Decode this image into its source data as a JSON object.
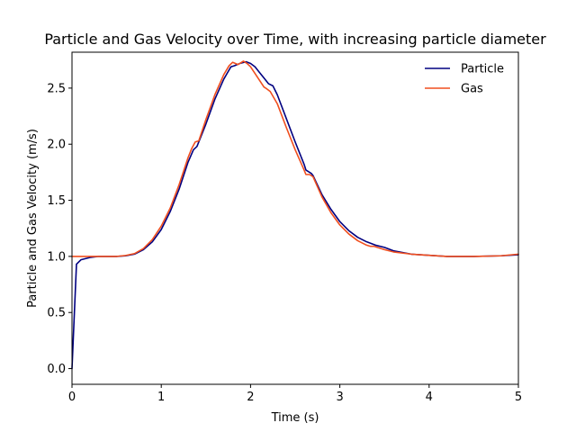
{
  "chart_data": {
    "type": "line",
    "title": "Particle and Gas Velocity over Time, with increasing particle diameter",
    "xlabel": "Time (s)",
    "ylabel": "Particle and Gas Velocity (m/s)",
    "xlim": [
      0,
      5
    ],
    "ylim": [
      -0.14,
      2.82
    ],
    "xticks": [
      0,
      1,
      2,
      3,
      4,
      5
    ],
    "xtick_labels": [
      "0",
      "1",
      "2",
      "3",
      "4",
      "5"
    ],
    "yticks": [
      0.0,
      0.5,
      1.0,
      1.5,
      2.0,
      2.5
    ],
    "ytick_labels": [
      "0.0",
      "0.5",
      "1.0",
      "1.5",
      "2.0",
      "2.5"
    ],
    "grid": false,
    "legend": "top-right",
    "series": [
      {
        "name": "Particle",
        "color": "#000080",
        "x": [
          0,
          0.05,
          0.1,
          0.2,
          0.3,
          0.4,
          0.5,
          0.6,
          0.7,
          0.8,
          0.9,
          1.0,
          1.1,
          1.2,
          1.3,
          1.36,
          1.4,
          1.5,
          1.6,
          1.7,
          1.78,
          1.82,
          1.88,
          1.95,
          2.0,
          2.05,
          2.1,
          2.15,
          2.2,
          2.25,
          2.3,
          2.4,
          2.5,
          2.6,
          2.62,
          2.68,
          2.7,
          2.8,
          2.9,
          3.0,
          3.1,
          3.2,
          3.3,
          3.4,
          3.5,
          3.6,
          3.8,
          4.0,
          4.2,
          4.5,
          4.8,
          5.0
        ],
        "y": [
          0.0,
          0.93,
          0.97,
          0.99,
          1.0,
          1.0,
          1.0,
          1.005,
          1.02,
          1.06,
          1.13,
          1.24,
          1.4,
          1.6,
          1.84,
          1.95,
          1.98,
          2.18,
          2.4,
          2.58,
          2.69,
          2.7,
          2.72,
          2.735,
          2.72,
          2.69,
          2.64,
          2.59,
          2.54,
          2.52,
          2.44,
          2.23,
          2.02,
          1.82,
          1.77,
          1.74,
          1.72,
          1.55,
          1.42,
          1.31,
          1.23,
          1.17,
          1.13,
          1.1,
          1.08,
          1.05,
          1.02,
          1.01,
          1.0,
          1.0,
          1.005,
          1.015
        ]
      },
      {
        "name": "Gas",
        "color": "#f04e1e",
        "x": [
          0,
          0.1,
          0.2,
          0.3,
          0.4,
          0.5,
          0.6,
          0.7,
          0.8,
          0.9,
          1.0,
          1.1,
          1.2,
          1.3,
          1.34,
          1.38,
          1.42,
          1.5,
          1.6,
          1.7,
          1.76,
          1.8,
          1.86,
          1.92,
          1.96,
          2.0,
          2.05,
          2.1,
          2.15,
          2.17,
          2.22,
          2.3,
          2.4,
          2.5,
          2.6,
          2.62,
          2.66,
          2.7,
          2.8,
          2.9,
          3.0,
          3.1,
          3.2,
          3.3,
          3.34,
          3.38,
          3.5,
          3.6,
          3.8,
          4.0,
          4.2,
          4.5,
          4.8,
          5.0
        ],
        "y": [
          1.0,
          1.0,
          1.0,
          1.0,
          1.0,
          1.0,
          1.008,
          1.025,
          1.07,
          1.15,
          1.27,
          1.43,
          1.64,
          1.88,
          1.96,
          2.02,
          2.03,
          2.22,
          2.44,
          2.62,
          2.7,
          2.73,
          2.71,
          2.74,
          2.72,
          2.69,
          2.63,
          2.57,
          2.51,
          2.5,
          2.47,
          2.36,
          2.15,
          1.95,
          1.77,
          1.73,
          1.73,
          1.71,
          1.53,
          1.39,
          1.28,
          1.2,
          1.14,
          1.1,
          1.09,
          1.09,
          1.06,
          1.04,
          1.02,
          1.01,
          1.0,
          1.0,
          1.005,
          1.02
        ]
      }
    ]
  }
}
